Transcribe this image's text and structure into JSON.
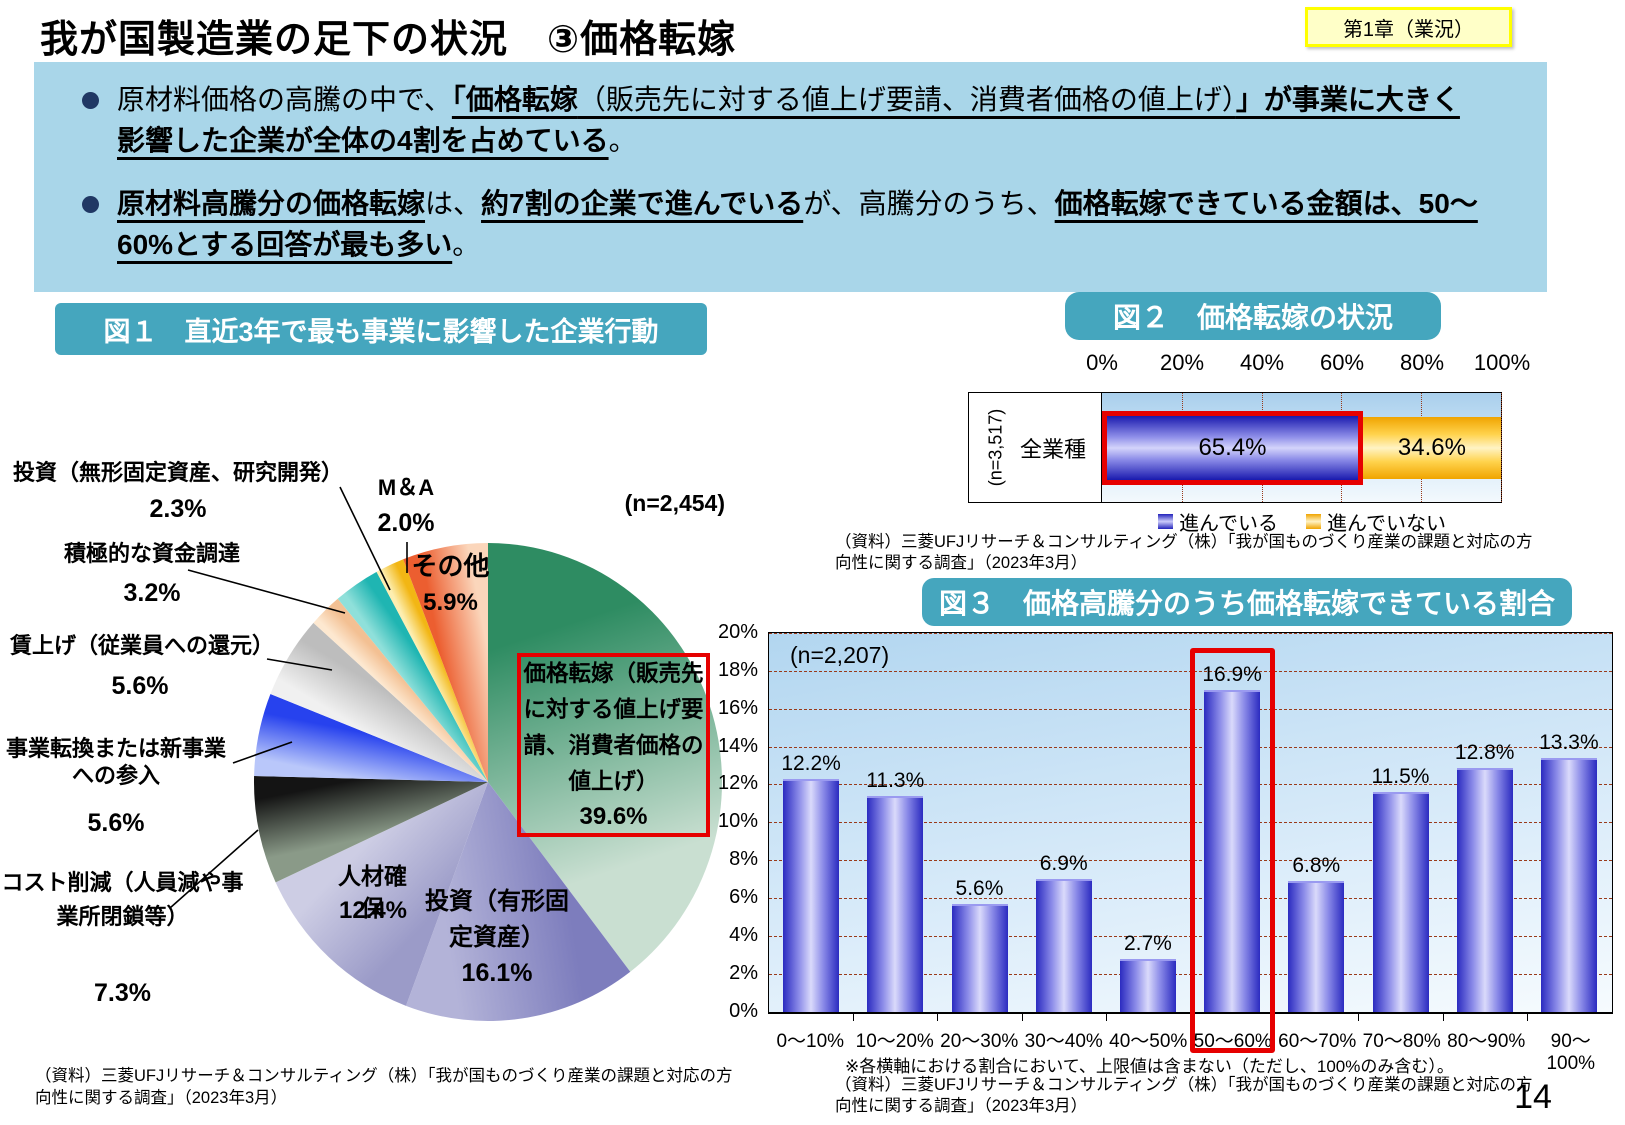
{
  "page": {
    "title": "我が国製造業の足下の状況　③価格転嫁",
    "chapter_badge": "第1章（業況）",
    "page_number": "14"
  },
  "colors": {
    "teal_header": "#45a6be",
    "summary_box_blue": "#a9d6e9",
    "bullet_navy": "#203864",
    "highlight_red": "#e60000",
    "gridline_brown": "#993a1a",
    "badge_bg": "#ffffc8",
    "badge_border": "#ffff00",
    "bar_blue_dark": "#2b2bc0",
    "bar_yellow_dark": "#f0a400"
  },
  "summary": {
    "bullets": [
      {
        "segments": [
          {
            "t": "原材料価格の高騰の中で、",
            "b": false,
            "u": false
          },
          {
            "t": "「価格転嫁",
            "b": true,
            "u": true
          },
          {
            "t": "（販売先に対する値上げ要請、消費者価格の値上げ）",
            "b": false,
            "u": true
          },
          {
            "t": "」が事業に大きく影響した企業が全体の4割を占めている",
            "b": true,
            "u": true
          },
          {
            "t": "。",
            "b": false,
            "u": false
          }
        ]
      },
      {
        "segments": [
          {
            "t": "原材料高騰分の価格転嫁",
            "b": true,
            "u": true
          },
          {
            "t": "は、",
            "b": false,
            "u": false
          },
          {
            "t": "約7割の企業で進んでいる",
            "b": true,
            "u": true
          },
          {
            "t": "が、高騰分のうち、",
            "b": false,
            "u": false
          },
          {
            "t": "価格転嫁できている金額は、50～60%とする回答が最も多い",
            "b": true,
            "u": true
          },
          {
            "t": "。",
            "b": false,
            "u": false
          }
        ]
      }
    ]
  },
  "figures": {
    "fig1": {
      "title": "図１　直近3年で最も事業に影響した企業行動",
      "n_label": "(n=2,454)",
      "source": "（資料）三菱UFJリサーチ＆コンサルティング（株）「我が国ものづくり産業の課題と対応の方向性に関する調査」（2023年3月）",
      "chart_data": {
        "type": "pie",
        "start_angle_deg": 0,
        "direction": "clockwise",
        "slices": [
          {
            "label": "価格転嫁（販売先に対する値上げ要請、消費者価格の値上げ）",
            "pct": "39.6%",
            "value": 39.6,
            "colors": [
              "#2e8c62",
              "#c9dfd1"
            ],
            "highlighted": true
          },
          {
            "label": "投資（有形固定資産）",
            "pct": "16.1%",
            "value": 16.1,
            "colors": [
              "#7d7dbd",
              "#b3b3d8"
            ]
          },
          {
            "label": "人材確保",
            "pct": "12.4%",
            "value": 12.4,
            "colors": [
              "#9b9bc8",
              "#cdcde4"
            ]
          },
          {
            "label": "コスト削減（人員減や事業所閉鎖等）",
            "pct": "7.3%",
            "value": 7.3,
            "colors": [
              "#8a9a88",
              "#141414"
            ]
          },
          {
            "label": "事業転換または新事業への参入",
            "pct": "5.6%",
            "value": 5.6,
            "colors": [
              "#b9c7fa",
              "#2742ee"
            ]
          },
          {
            "label": "賃上げ（従業員への還元）",
            "pct": "5.6%",
            "value": 5.6,
            "colors": [
              "#f0f0f0",
              "#bdbdbd"
            ]
          },
          {
            "label": "投資（無形固定資産、研究開発）",
            "pct": "2.3%",
            "value": 2.3,
            "colors": [
              "#fde8d0",
              "#f3c093"
            ]
          },
          {
            "label": "積極的な資金調達",
            "pct": "3.2%",
            "value": 3.2,
            "colors": [
              "#8fe0da",
              "#1fb5b2"
            ]
          },
          {
            "label": "M＆A",
            "pct": "2.0%",
            "value": 2.0,
            "colors": [
              "#fdeeb0",
              "#f2b614"
            ]
          },
          {
            "label": "その他",
            "pct": "5.9%",
            "value": 5.9,
            "colors": [
              "#ec5e30",
              "#fbd6bb"
            ]
          }
        ]
      }
    },
    "fig2": {
      "title": "図２　価格転嫁の状況",
      "row_label": "全業種",
      "n_label": "(n=3,517)",
      "x_ticks": [
        "0%",
        "20%",
        "40%",
        "60%",
        "80%",
        "100%"
      ],
      "legend": [
        {
          "label": "進んでいる"
        },
        {
          "label": "進んでいない"
        }
      ],
      "source": "（資料）三菱UFJリサーチ＆コンサルティング（株）「我が国ものづくり産業の課題と対応の方向性に関する調査」（2023年3月）",
      "chart_data": {
        "type": "bar",
        "orientation": "horizontal",
        "stacked": true,
        "categories": [
          "全業種"
        ],
        "xlim": [
          0,
          100
        ],
        "series": [
          {
            "name": "進んでいる",
            "values": [
              65.4
            ],
            "label": "65.4%",
            "highlighted": true
          },
          {
            "name": "進んでいない",
            "values": [
              34.6
            ],
            "label": "34.6%"
          }
        ]
      }
    },
    "fig3": {
      "title": "図３　価格高騰分のうち価格転嫁できている割合",
      "n_label": "(n=2,207)",
      "note": "※各横軸における割合において、上限値は含まない（ただし、100%のみ含む）。",
      "source": "（資料）三菱UFJリサーチ＆コンサルティング（株）「我が国ものづくり産業の課題と対応の方向性に関する調査」（2023年3月）",
      "chart_data": {
        "type": "bar",
        "categories": [
          "0～10%",
          "10～20%",
          "20～30%",
          "30～40%",
          "40～50%",
          "50～60%",
          "60～70%",
          "70～80%",
          "80～90%",
          "90～100%"
        ],
        "values": [
          12.2,
          11.3,
          5.6,
          6.9,
          2.7,
          16.9,
          6.8,
          11.5,
          12.8,
          13.3
        ],
        "labels": [
          "12.2%",
          "11.3%",
          "5.6%",
          "6.9%",
          "2.7%",
          "16.9%",
          "6.8%",
          "11.5%",
          "12.8%",
          "13.3%"
        ],
        "ylim": [
          0,
          20
        ],
        "y_tick_step": 2,
        "y_ticks": [
          "0%",
          "2%",
          "4%",
          "6%",
          "8%",
          "10%",
          "12%",
          "14%",
          "16%",
          "18%",
          "20%"
        ],
        "highlight_index": 5,
        "grid": true
      }
    }
  }
}
